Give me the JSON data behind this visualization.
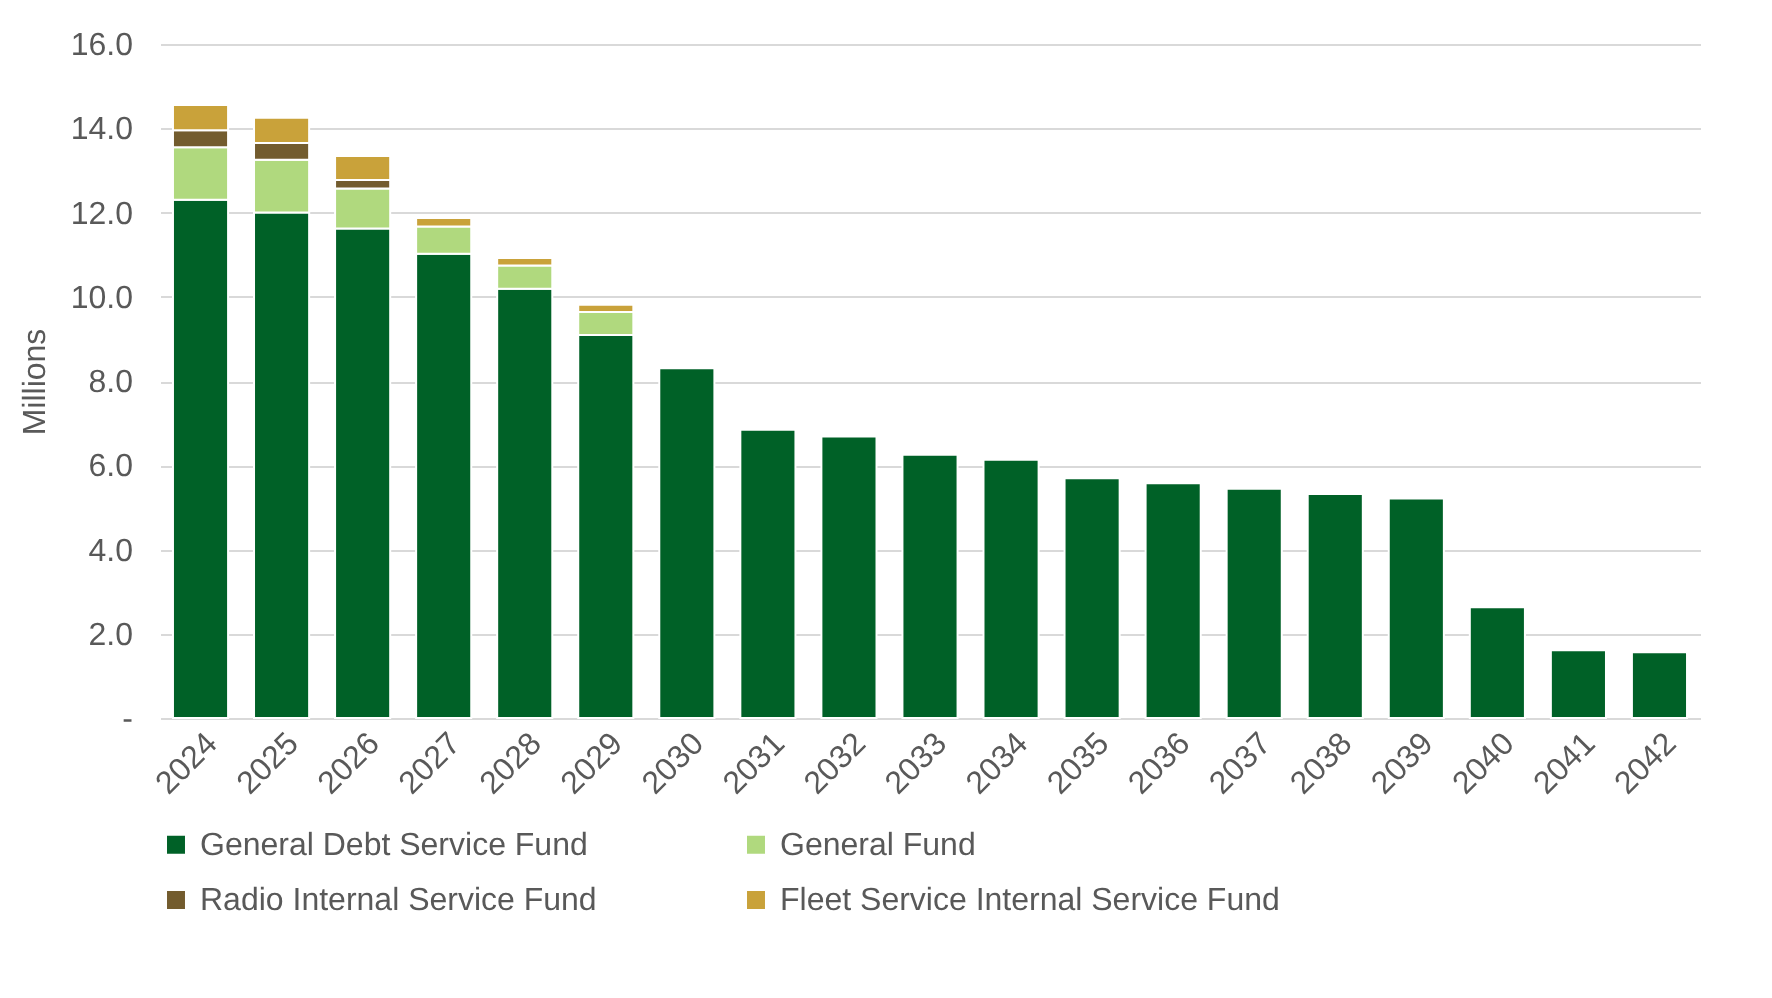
{
  "chart_data": {
    "type": "bar",
    "stacked": true,
    "ylabel": "Millions",
    "categories": [
      "2024",
      "2025",
      "2026",
      "2027",
      "2028",
      "2029",
      "2030",
      "2031",
      "2032",
      "2033",
      "2034",
      "2035",
      "2036",
      "2037",
      "2038",
      "2039",
      "2040",
      "2041",
      "2042"
    ],
    "series": [
      {
        "name": "General Debt Service Fund",
        "color": "#006127",
        "values": [
          12.3,
          12.0,
          11.62,
          11.02,
          10.19,
          9.09,
          8.3,
          6.84,
          6.68,
          6.25,
          6.13,
          5.69,
          5.57,
          5.44,
          5.32,
          5.21,
          2.63,
          1.61,
          1.56
        ]
      },
      {
        "name": "General Fund",
        "color": "#b0d97e",
        "values": [
          1.25,
          1.25,
          0.95,
          0.65,
          0.55,
          0.55,
          null,
          null,
          null,
          null,
          null,
          null,
          null,
          null,
          null,
          null,
          null,
          null,
          null
        ]
      },
      {
        "name": "Radio Internal Service Fund",
        "color": "#735c2e",
        "values": [
          0.4,
          0.4,
          0.2,
          null,
          null,
          null,
          null,
          null,
          null,
          null,
          null,
          null,
          null,
          null,
          null,
          null,
          null,
          null,
          null
        ]
      },
      {
        "name": "Fleet Service Internal Service Fund",
        "color": "#c9a23a",
        "values": [
          0.6,
          0.6,
          0.57,
          0.2,
          0.18,
          0.17,
          null,
          null,
          null,
          null,
          null,
          null,
          null,
          null,
          null,
          null,
          null,
          null,
          null
        ]
      }
    ],
    "ylim": [
      0,
      16
    ],
    "yticks": [
      {
        "value": 0,
        "label": "-"
      },
      {
        "value": 2,
        "label": "2.0"
      },
      {
        "value": 4,
        "label": "4.0"
      },
      {
        "value": 6,
        "label": "6.0"
      },
      {
        "value": 8,
        "label": "8.0"
      },
      {
        "value": 10,
        "label": "10.0"
      },
      {
        "value": 12,
        "label": "12.0"
      },
      {
        "value": 14,
        "label": "14.0"
      },
      {
        "value": 16,
        "label": "16.0"
      }
    ],
    "grid": "y",
    "legend": "bottom"
  }
}
